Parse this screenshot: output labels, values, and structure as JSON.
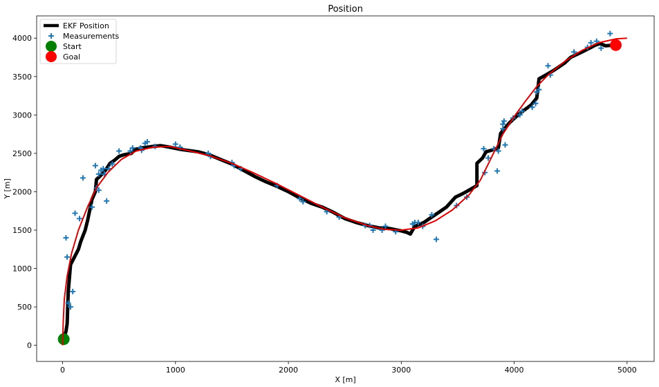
{
  "chart_data": {
    "type": "scatter",
    "title": "Position",
    "xlabel": "X [m]",
    "ylabel": "Y [m]",
    "xlim": [
      -230,
      5240
    ],
    "ylim": [
      -210,
      4290
    ],
    "xticks": [
      0,
      1000,
      2000,
      3000,
      4000,
      5000
    ],
    "yticks": [
      0,
      500,
      1000,
      1500,
      2000,
      2500,
      3000,
      3500,
      4000
    ],
    "grid": false,
    "legend_position": "top-left",
    "legend": [
      {
        "label": "EKF Position",
        "kind": "line",
        "color": "#000000"
      },
      {
        "label": "Measurements",
        "kind": "plus",
        "color": "#1f77b4"
      },
      {
        "label": "Start",
        "kind": "circle",
        "color": "#008000"
      },
      {
        "label": "Goal",
        "kind": "circle",
        "color": "#ff0000"
      }
    ],
    "series": [
      {
        "name": "EKF Position",
        "type": "line",
        "color": "#000000",
        "points": [
          [
            0,
            60
          ],
          [
            10,
            100
          ],
          [
            20,
            140
          ],
          [
            30,
            180
          ],
          [
            40,
            280
          ],
          [
            50,
            700
          ],
          [
            70,
            1050
          ],
          [
            140,
            1250
          ],
          [
            160,
            1350
          ],
          [
            200,
            1500
          ],
          [
            220,
            1620
          ],
          [
            260,
            1900
          ],
          [
            290,
            2000
          ],
          [
            300,
            2160
          ],
          [
            330,
            2200
          ],
          [
            380,
            2280
          ],
          [
            420,
            2370
          ],
          [
            460,
            2410
          ],
          [
            500,
            2460
          ],
          [
            540,
            2480
          ],
          [
            610,
            2500
          ],
          [
            640,
            2550
          ],
          [
            700,
            2570
          ],
          [
            800,
            2590
          ],
          [
            870,
            2600
          ],
          [
            950,
            2580
          ],
          [
            1050,
            2550
          ],
          [
            1200,
            2520
          ],
          [
            1300,
            2480
          ],
          [
            1400,
            2420
          ],
          [
            1500,
            2360
          ],
          [
            1600,
            2280
          ],
          [
            1700,
            2200
          ],
          [
            1800,
            2130
          ],
          [
            1900,
            2070
          ],
          [
            2000,
            2000
          ],
          [
            2100,
            1920
          ],
          [
            2200,
            1850
          ],
          [
            2300,
            1800
          ],
          [
            2400,
            1730
          ],
          [
            2500,
            1650
          ],
          [
            2600,
            1600
          ],
          [
            2700,
            1560
          ],
          [
            2800,
            1530
          ],
          [
            2900,
            1520
          ],
          [
            3000,
            1490
          ],
          [
            3050,
            1470
          ],
          [
            3080,
            1450
          ],
          [
            3120,
            1550
          ],
          [
            3200,
            1600
          ],
          [
            3250,
            1650
          ],
          [
            3300,
            1700
          ],
          [
            3400,
            1800
          ],
          [
            3480,
            1930
          ],
          [
            3550,
            1980
          ],
          [
            3600,
            2020
          ],
          [
            3670,
            2080
          ],
          [
            3670,
            2370
          ],
          [
            3720,
            2440
          ],
          [
            3750,
            2520
          ],
          [
            3800,
            2540
          ],
          [
            3860,
            2570
          ],
          [
            3880,
            2760
          ],
          [
            3960,
            2900
          ],
          [
            4050,
            3020
          ],
          [
            4150,
            3130
          ],
          [
            4200,
            3220
          ],
          [
            4220,
            3470
          ],
          [
            4280,
            3520
          ],
          [
            4350,
            3580
          ],
          [
            4450,
            3680
          ],
          [
            4500,
            3750
          ],
          [
            4600,
            3820
          ],
          [
            4680,
            3880
          ],
          [
            4720,
            3910
          ],
          [
            4760,
            3930
          ],
          [
            4810,
            3900
          ],
          [
            4850,
            3905
          ],
          [
            4870,
            3905
          ]
        ]
      },
      {
        "name": "Measurements",
        "type": "scatter",
        "color": "#1f77b4",
        "points": [
          [
            30,
            1400
          ],
          [
            40,
            1150
          ],
          [
            50,
            550
          ],
          [
            70,
            500
          ],
          [
            90,
            700
          ],
          [
            110,
            1720
          ],
          [
            150,
            1650
          ],
          [
            180,
            2180
          ],
          [
            260,
            1800
          ],
          [
            290,
            2340
          ],
          [
            300,
            2050
          ],
          [
            320,
            2020
          ],
          [
            320,
            2230
          ],
          [
            340,
            2280
          ],
          [
            360,
            2300
          ],
          [
            370,
            2230
          ],
          [
            390,
            1880
          ],
          [
            410,
            2300
          ],
          [
            440,
            2360
          ],
          [
            500,
            2530
          ],
          [
            600,
            2530
          ],
          [
            620,
            2570
          ],
          [
            690,
            2570
          ],
          [
            700,
            2540
          ],
          [
            730,
            2630
          ],
          [
            750,
            2650
          ],
          [
            820,
            2590
          ],
          [
            1000,
            2620
          ],
          [
            1040,
            2580
          ],
          [
            1290,
            2500
          ],
          [
            1310,
            2460
          ],
          [
            1500,
            2380
          ],
          [
            1520,
            2340
          ],
          [
            1580,
            2300
          ],
          [
            1900,
            2080
          ],
          [
            2100,
            1910
          ],
          [
            2130,
            1870
          ],
          [
            2340,
            1740
          ],
          [
            2450,
            1670
          ],
          [
            2680,
            1560
          ],
          [
            2720,
            1560
          ],
          [
            2750,
            1500
          ],
          [
            2830,
            1500
          ],
          [
            2860,
            1550
          ],
          [
            2950,
            1480
          ],
          [
            3100,
            1580
          ],
          [
            3120,
            1600
          ],
          [
            3150,
            1600
          ],
          [
            3190,
            1550
          ],
          [
            3270,
            1700
          ],
          [
            3310,
            1380
          ],
          [
            3490,
            1820
          ],
          [
            3580,
            1930
          ],
          [
            3730,
            2560
          ],
          [
            3740,
            2250
          ],
          [
            3770,
            2440
          ],
          [
            3820,
            2560
          ],
          [
            3850,
            2270
          ],
          [
            3860,
            2530
          ],
          [
            3900,
            2820
          ],
          [
            3900,
            2880
          ],
          [
            3910,
            2920
          ],
          [
            3920,
            2610
          ],
          [
            3990,
            2960
          ],
          [
            4050,
            3000
          ],
          [
            4070,
            3050
          ],
          [
            4160,
            3100
          ],
          [
            4190,
            3150
          ],
          [
            4200,
            3300
          ],
          [
            4220,
            3330
          ],
          [
            4300,
            3640
          ],
          [
            4320,
            3520
          ],
          [
            4530,
            3820
          ],
          [
            4650,
            3880
          ],
          [
            4680,
            3940
          ],
          [
            4730,
            3960
          ],
          [
            4770,
            3870
          ],
          [
            4850,
            4060
          ]
        ]
      },
      {
        "name": "Start",
        "type": "marker",
        "color": "#008000",
        "points": [
          [
            10,
            80
          ]
        ]
      },
      {
        "name": "Goal",
        "type": "marker",
        "color": "#ff0000",
        "points": [
          [
            4900,
            3910
          ]
        ]
      },
      {
        "type": "line",
        "color": "#dd0000",
        "points": [
          [
            0,
            0
          ],
          [
            5,
            300
          ],
          [
            15,
            600
          ],
          [
            40,
            900
          ],
          [
            80,
            1200
          ],
          [
            140,
            1500
          ],
          [
            220,
            1800
          ],
          [
            300,
            2050
          ],
          [
            400,
            2250
          ],
          [
            520,
            2420
          ],
          [
            650,
            2530
          ],
          [
            800,
            2580
          ],
          [
            950,
            2590
          ],
          [
            1100,
            2540
          ],
          [
            1300,
            2470
          ],
          [
            1500,
            2370
          ],
          [
            1700,
            2240
          ],
          [
            1900,
            2100
          ],
          [
            2100,
            1950
          ],
          [
            2300,
            1800
          ],
          [
            2500,
            1660
          ],
          [
            2700,
            1560
          ],
          [
            2850,
            1510
          ],
          [
            3000,
            1500
          ],
          [
            3150,
            1530
          ],
          [
            3300,
            1620
          ],
          [
            3450,
            1760
          ],
          [
            3600,
            1960
          ],
          [
            3700,
            2150
          ],
          [
            3800,
            2450
          ],
          [
            3900,
            2750
          ],
          [
            4000,
            2980
          ],
          [
            4100,
            3180
          ],
          [
            4200,
            3370
          ],
          [
            4300,
            3520
          ],
          [
            4450,
            3700
          ],
          [
            4600,
            3840
          ],
          [
            4750,
            3940
          ],
          [
            4900,
            3990
          ],
          [
            5000,
            4000
          ]
        ]
      }
    ]
  }
}
